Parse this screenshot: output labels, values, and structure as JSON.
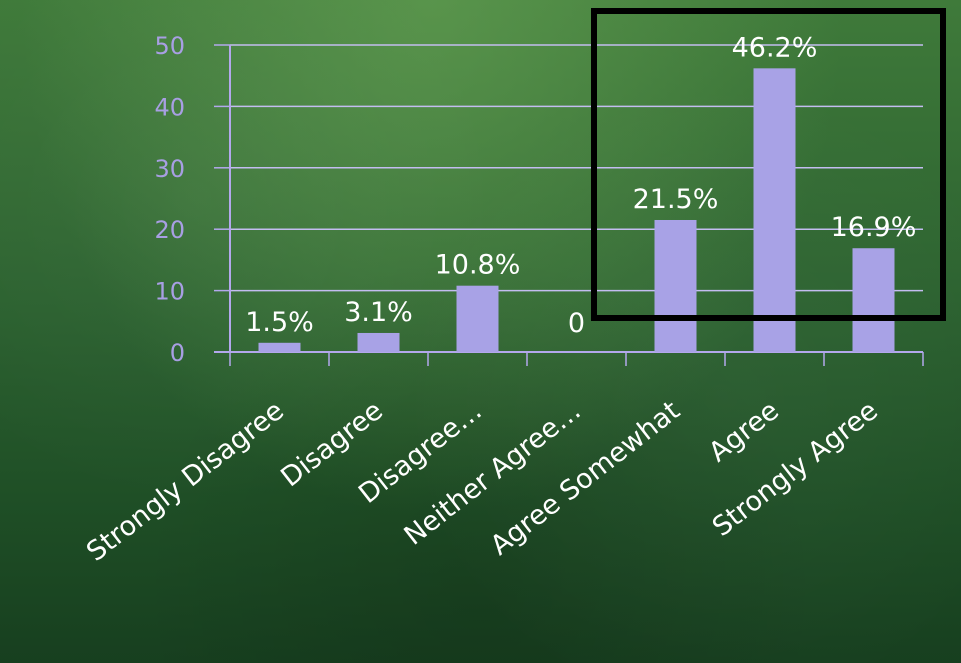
{
  "chart_data": {
    "type": "bar",
    "categories": [
      "Strongly Disagree",
      "Disagree",
      "Disagree…",
      "Neither Agree…",
      "Agree Somewhat",
      "Agree",
      "Strongly Agree"
    ],
    "values": [
      1.5,
      3.1,
      10.8,
      0,
      21.5,
      46.2,
      16.9
    ],
    "data_labels": [
      "1.5%",
      "3.1%",
      "10.8%",
      "0",
      "21.5%",
      "46.2%",
      "16.9%"
    ],
    "ylim": [
      0,
      50
    ],
    "yticks": [
      0,
      10,
      20,
      30,
      40,
      50
    ],
    "title": "",
    "xlabel": "",
    "ylabel": "",
    "grid": true,
    "legend": "none",
    "highlight": {
      "description": "black rectangle around last three bars",
      "categories": [
        "Agree Somewhat",
        "Agree",
        "Strongly Agree"
      ]
    }
  },
  "colors": {
    "bar": "#a8a2e6",
    "axis": "#b3a8ec",
    "grid": "#c3bdf0",
    "tick_text": "#a89fe3",
    "label_text": "#ffffff",
    "highlight_box": "#000000"
  }
}
